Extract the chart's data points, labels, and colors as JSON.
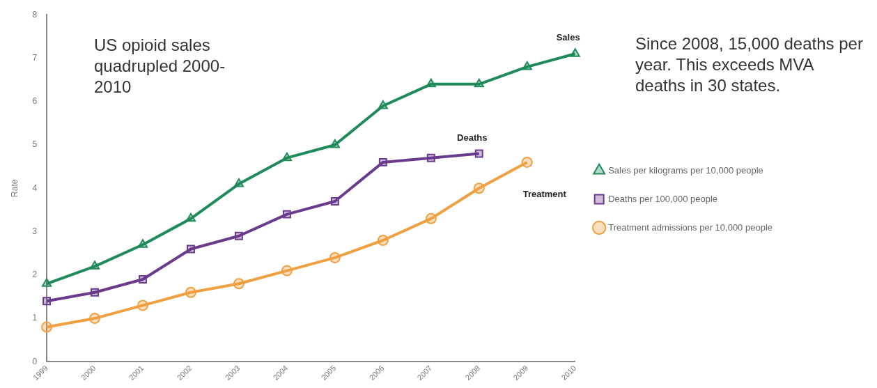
{
  "chart_data": {
    "type": "line",
    "ylabel": "Rate",
    "categories": [
      "1999",
      "2000",
      "2001",
      "2002",
      "2003",
      "2004",
      "2005",
      "2006",
      "2007",
      "2008",
      "2009",
      "2010"
    ],
    "ylim": [
      0,
      8
    ],
    "yticks": [
      0,
      1,
      2,
      3,
      4,
      5,
      6,
      7,
      8
    ],
    "grid": false,
    "legend": "right",
    "series": [
      {
        "name": "Sales per kilograms per 10,000 people",
        "color": "#1f8a5a",
        "marker": "triangle",
        "values": [
          1.8,
          2.2,
          2.7,
          3.3,
          4.1,
          4.7,
          5.0,
          5.9,
          6.4,
          6.4,
          6.8,
          7.1
        ]
      },
      {
        "name": "Deaths per 100,000 people",
        "color": "#6a3a8c",
        "marker": "square",
        "values": [
          1.4,
          1.6,
          1.9,
          2.6,
          2.9,
          3.4,
          3.7,
          4.6,
          4.7,
          4.8,
          null,
          null
        ]
      },
      {
        "name": "Treatment admissions per 10,000 people",
        "color": "#f0a040",
        "marker": "circle",
        "values": [
          0.8,
          1.0,
          1.3,
          1.6,
          1.8,
          2.1,
          2.4,
          2.8,
          3.3,
          4.0,
          4.6,
          null
        ]
      }
    ],
    "annotations": [
      "US opioid sales quadrupled 2000-2010",
      "Since 2008, 15,000 deaths per year. This exceeds MVA deaths in 30 states.",
      {
        "text": "Sales",
        "x": "2010",
        "y": 7.1
      },
      {
        "text": "Deaths",
        "x": "2008",
        "y": 4.8
      },
      {
        "text": "Treatment",
        "x": "2009",
        "y": 4.6
      }
    ]
  }
}
